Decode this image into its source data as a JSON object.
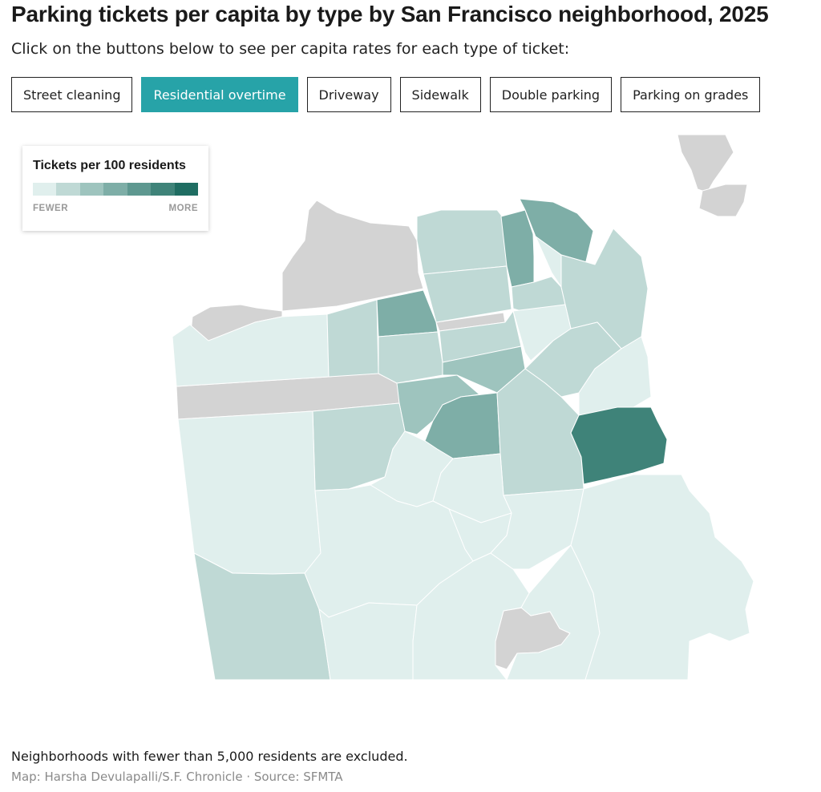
{
  "header": {
    "title": "Parking tickets per capita by type by San Francisco neighborhood, 2025",
    "subtitle": "Click on the buttons below to see per capita rates for each type of ticket:"
  },
  "tabs": [
    {
      "label": "Street cleaning",
      "active": false
    },
    {
      "label": "Residential overtime",
      "active": true
    },
    {
      "label": "Driveway",
      "active": false
    },
    {
      "label": "Sidewalk",
      "active": false
    },
    {
      "label": "Double parking",
      "active": false
    },
    {
      "label": "Parking on grades",
      "active": false
    }
  ],
  "legend": {
    "title": "Tickets per 100 residents",
    "low_label": "FEWER",
    "high_label": "MORE",
    "colors": [
      "#e0efed",
      "#bfd9d5",
      "#9ec4be",
      "#7eaea7",
      "#5e9890",
      "#3f8379",
      "#1f6d62"
    ]
  },
  "map": {
    "excluded_color": "#d3d3d3",
    "excluded_neighborhood_count": 5
  },
  "footer": {
    "note": "Neighborhoods with fewer than 5,000 residents are excluded.",
    "credit": "Map: Harsha Devulapalli/S.F. Chronicle · Source: SFMTA"
  }
}
